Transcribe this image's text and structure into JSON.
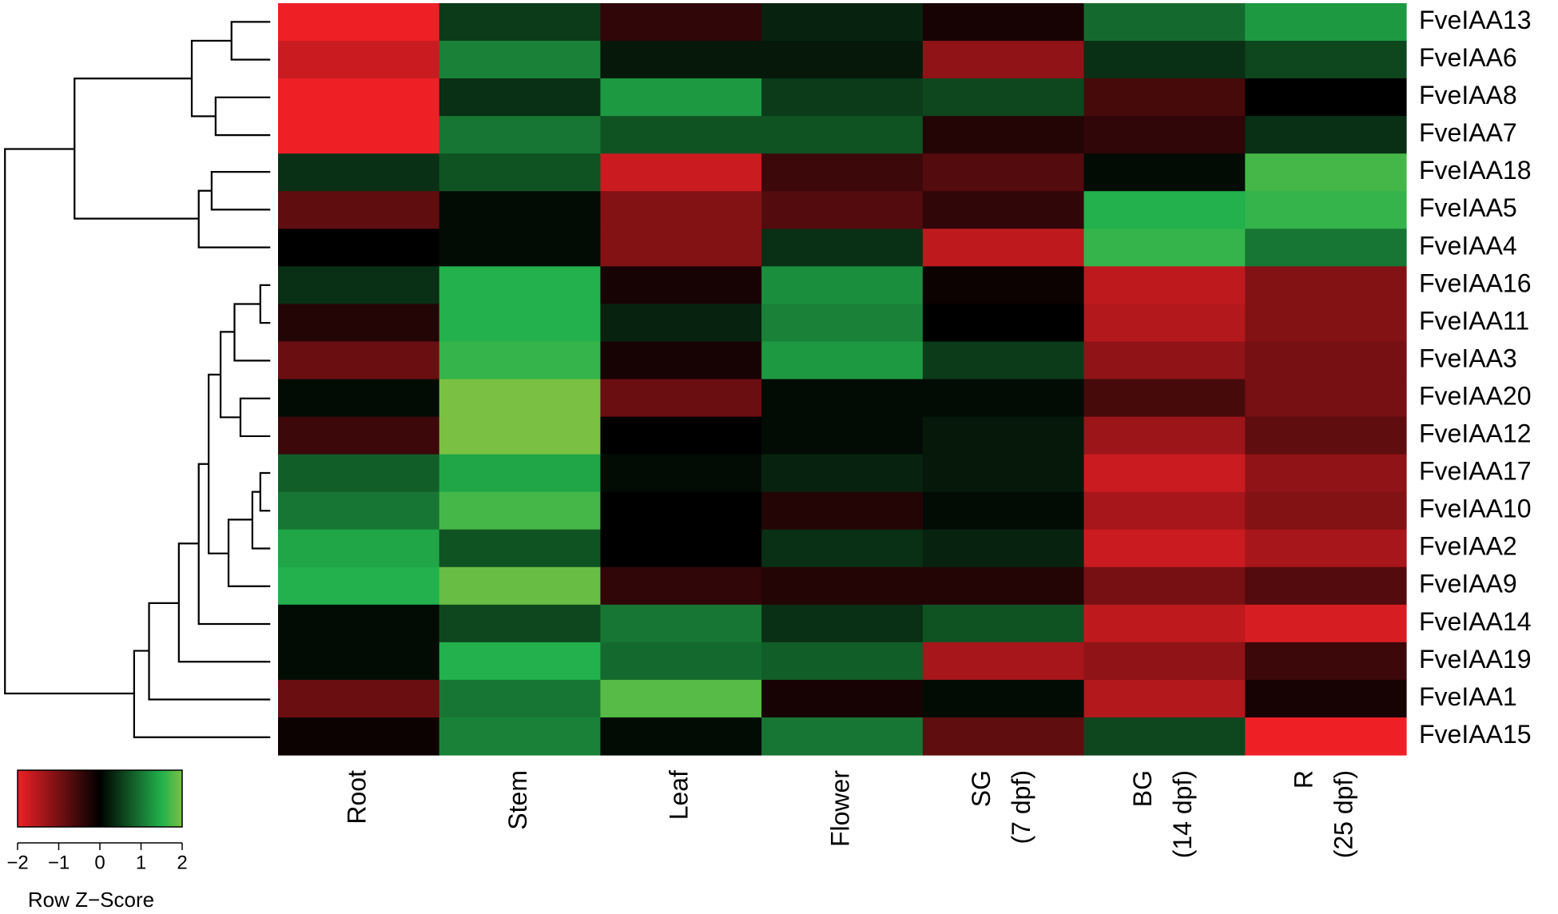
{
  "chart_data": {
    "type": "heatmap",
    "x": [
      [
        "Root"
      ],
      [
        "Stem"
      ],
      [
        "Leaf"
      ],
      [
        "Flower"
      ],
      [
        "SG",
        "(7 dpf)"
      ],
      [
        "BG",
        "(14 dpf)"
      ],
      [
        "R",
        "(25 dpf)"
      ]
    ],
    "y": [
      "FveIAA13",
      "FveIAA6",
      "FveIAA8",
      "FveIAA7",
      "FveIAA18",
      "FveIAA5",
      "FveIAA4",
      "FveIAA16",
      "FveIAA11",
      "FveIAA3",
      "FveIAA20",
      "FveIAA12",
      "FveIAA17",
      "FveIAA10",
      "FveIAA2",
      "FveIAA9",
      "FveIAA14",
      "FveIAA19",
      "FveIAA1",
      "FveIAA15"
    ],
    "values": [
      [
        -2.0,
        0.5,
        -0.4,
        0.3,
        -0.2,
        0.9,
        1.3
      ],
      [
        -1.7,
        1.1,
        0.2,
        0.2,
        -1.2,
        0.4,
        0.6
      ],
      [
        -2.0,
        0.4,
        1.3,
        0.5,
        0.6,
        -0.6,
        0.0
      ],
      [
        -2.0,
        1.0,
        0.7,
        0.7,
        -0.3,
        -0.4,
        0.4
      ],
      [
        0.4,
        0.7,
        -1.7,
        -0.5,
        -0.7,
        0.1,
        1.7
      ],
      [
        -0.8,
        0.1,
        -1.1,
        -0.7,
        -0.4,
        1.5,
        1.6
      ],
      [
        0.0,
        0.1,
        -1.1,
        0.4,
        -1.6,
        1.6,
        1.0
      ],
      [
        0.4,
        1.5,
        -0.2,
        1.2,
        -0.1,
        -1.6,
        -1.1
      ],
      [
        -0.3,
        1.5,
        0.3,
        1.1,
        0.0,
        -1.5,
        -1.1
      ],
      [
        -0.9,
        1.6,
        -0.2,
        1.3,
        0.5,
        -1.2,
        -1.0
      ],
      [
        0.1,
        2.0,
        -0.9,
        0.1,
        0.1,
        -0.6,
        -1.0
      ],
      [
        -0.5,
        2.0,
        0.0,
        0.1,
        0.2,
        -1.3,
        -0.8
      ],
      [
        0.8,
        1.4,
        0.1,
        0.3,
        0.2,
        -1.7,
        -1.2
      ],
      [
        1.0,
        1.7,
        0.0,
        -0.3,
        0.1,
        -1.4,
        -1.1
      ],
      [
        1.4,
        0.7,
        0.0,
        0.4,
        0.3,
        -1.7,
        -1.4
      ],
      [
        1.5,
        1.9,
        -0.4,
        -0.3,
        -0.3,
        -1.0,
        -0.7
      ],
      [
        0.1,
        0.6,
        1.0,
        0.4,
        0.7,
        -1.6,
        -1.8
      ],
      [
        0.1,
        1.5,
        0.9,
        0.8,
        -1.4,
        -1.2,
        -0.5
      ],
      [
        -0.9,
        1.0,
        1.8,
        -0.2,
        0.1,
        -1.5,
        -0.2
      ],
      [
        -0.1,
        1.1,
        0.1,
        1.0,
        -0.8,
        0.6,
        -2.0
      ]
    ],
    "colorscale": [
      {
        "value": -2,
        "color": "#ee2026"
      },
      {
        "value": 0,
        "color": "#000000"
      },
      {
        "value": 1.5,
        "color": "#22b14c"
      },
      {
        "value": 2,
        "color": "#7ac143"
      }
    ],
    "clim": [
      -2,
      2
    ],
    "cticks": [
      {
        "value": -2,
        "label": "−2"
      },
      {
        "value": -1,
        "label": "−1"
      },
      0,
      1,
      2
    ],
    "colorbar_title": "Row Z−Score"
  }
}
